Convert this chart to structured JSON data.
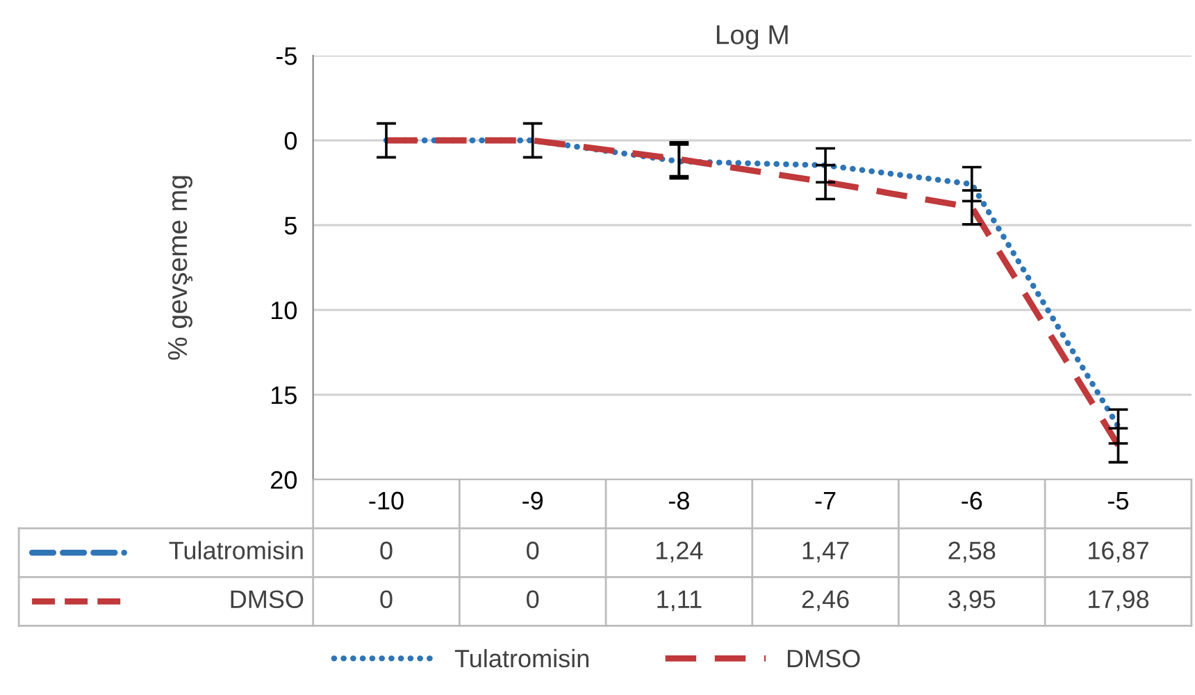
{
  "chart_data": {
    "type": "line",
    "title": "Log M",
    "ylabel": "% gevşeme mg",
    "categories": [
      "-10",
      "-9",
      "-8",
      "-7",
      "-6",
      "-5"
    ],
    "series": [
      {
        "name": "Tulatromisin",
        "color": "#2e75b6",
        "line_style": "dotted",
        "values": [
          0,
          0,
          1.24,
          1.47,
          2.58,
          16.87
        ],
        "errors": [
          1,
          1,
          1,
          1,
          1,
          1
        ],
        "value_labels": [
          "0",
          "0",
          "1,24",
          "1,47",
          "2,58",
          "16,87"
        ]
      },
      {
        "name": "DMSO",
        "color": "#c0393b",
        "line_style": "dashed",
        "values": [
          0,
          0,
          1.11,
          2.46,
          3.95,
          17.98
        ],
        "errors": [
          null,
          null,
          1,
          1,
          1,
          1
        ],
        "value_labels": [
          "0",
          "0",
          "1,11",
          "2,46",
          "3,95",
          "17,98"
        ]
      }
    ],
    "ylim": [
      20,
      -5
    ],
    "yticks": [
      -5,
      0,
      5,
      10,
      15,
      20
    ],
    "grid": "y",
    "legend": "bottom",
    "marker": "none"
  }
}
